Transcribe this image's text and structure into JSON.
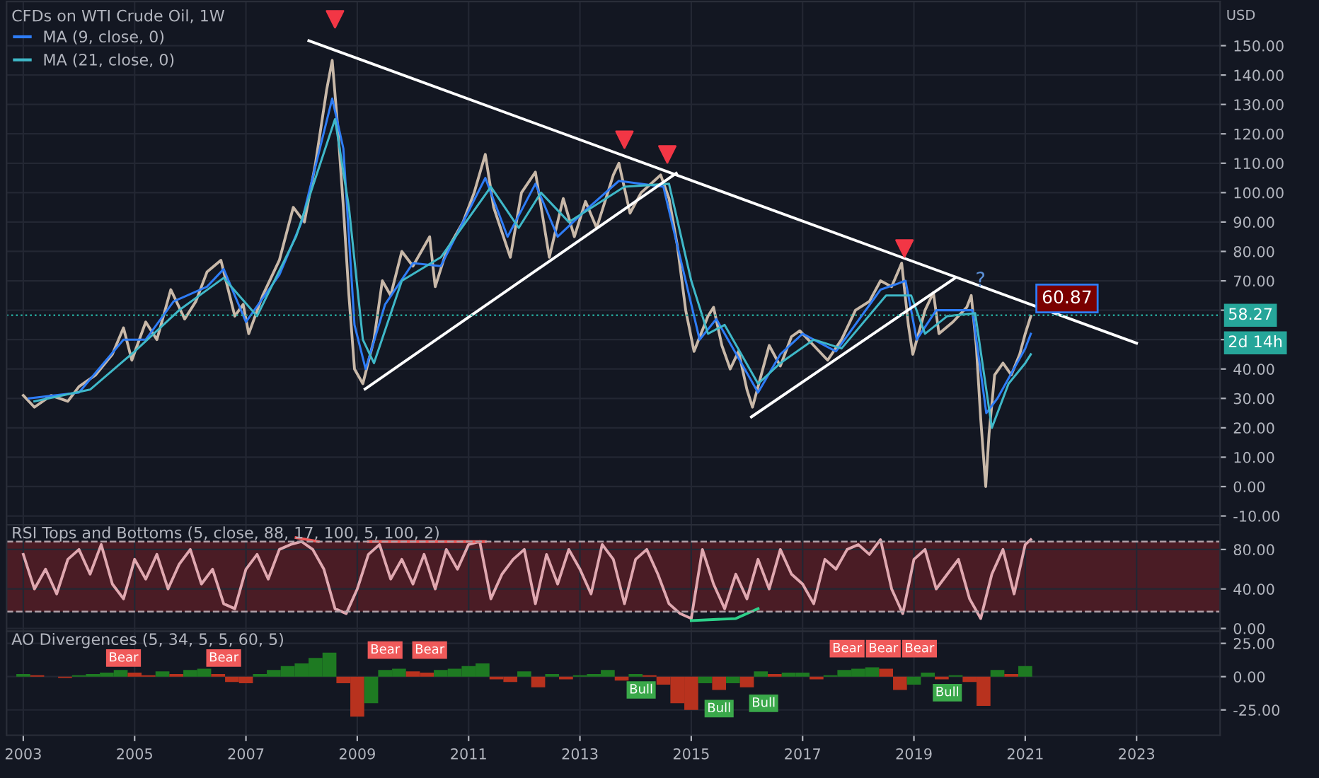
{
  "chart_data": [
    {
      "type": "line",
      "title": "CFDs on WTI Crude Oil, 1W",
      "legend": "top left",
      "grid": true,
      "tick_labels": "y",
      "xlim": [
        2002.7,
        2024.5
      ],
      "xticks": [
        2003,
        2005,
        2007,
        2009,
        2011,
        2013,
        2015,
        2017,
        2019,
        2021,
        2023
      ],
      "ylim": [
        -13,
        165
      ],
      "yticks": [
        {
          "value": -10,
          "label": "-10.00"
        },
        {
          "value": 0,
          "label": "0.00"
        },
        {
          "value": 10,
          "label": "10.00"
        },
        {
          "value": 20,
          "label": "20.00"
        },
        {
          "value": 30,
          "label": "30.00"
        },
        {
          "value": 40,
          "label": "40.00"
        },
        {
          "value": 50,
          "label": null
        },
        {
          "value": 60,
          "label": null
        },
        {
          "value": 70,
          "label": "70.00"
        },
        {
          "value": 80,
          "label": "80.00"
        },
        {
          "value": 90,
          "label": "90.00"
        },
        {
          "value": 100,
          "label": "100.00"
        },
        {
          "value": 110,
          "label": "110.00"
        },
        {
          "value": 120,
          "label": "120.00"
        },
        {
          "value": 130,
          "label": "130.00"
        },
        {
          "value": 140,
          "label": "140.00"
        },
        {
          "value": 150,
          "label": "150.00"
        }
      ],
      "series": [
        {
          "type": "line",
          "color": "#c8b8a8",
          "x": [
            2003.0,
            2003.2,
            2003.5,
            2003.8,
            2004.0,
            2004.3,
            2004.6,
            2004.8,
            2004.95,
            2005.2,
            2005.4,
            2005.65,
            2005.9,
            2006.1,
            2006.3,
            2006.55,
            2006.8,
            2006.95,
            2007.05,
            2007.3,
            2007.6,
            2007.85,
            2008.05,
            2008.25,
            2008.45,
            2008.55,
            2008.65,
            2008.75,
            2008.85,
            2008.95,
            2009.1,
            2009.3,
            2009.45,
            2009.6,
            2009.8,
            2010.0,
            2010.3,
            2010.4,
            2010.6,
            2010.9,
            2011.1,
            2011.3,
            2011.45,
            2011.75,
            2011.95,
            2012.2,
            2012.45,
            2012.7,
            2012.9,
            2013.1,
            2013.3,
            2013.6,
            2013.7,
            2013.9,
            2014.1,
            2014.45,
            2014.6,
            2014.75,
            2014.9,
            2015.05,
            2015.3,
            2015.4,
            2015.55,
            2015.7,
            2015.85,
            2016.0,
            2016.1,
            2016.4,
            2016.6,
            2016.8,
            2016.95,
            2017.2,
            2017.45,
            2017.7,
            2017.95,
            2018.2,
            2018.4,
            2018.6,
            2018.78,
            2018.9,
            2018.98,
            2019.2,
            2019.35,
            2019.45,
            2019.7,
            2019.95,
            2020.03,
            2020.12,
            2020.2,
            2020.29,
            2020.35,
            2020.45,
            2020.6,
            2020.75,
            2020.9,
            2021.0,
            2021.1
          ],
          "values": [
            31,
            27,
            31,
            29,
            34,
            38,
            45,
            54,
            43,
            56,
            50,
            67,
            57,
            63,
            73,
            77,
            58,
            62,
            52,
            65,
            77,
            95,
            90,
            110,
            135,
            145,
            122,
            95,
            65,
            40,
            35,
            50,
            70,
            65,
            80,
            75,
            85,
            68,
            80,
            90,
            100,
            113,
            95,
            78,
            100,
            107,
            78,
            98,
            85,
            97,
            88,
            106,
            110,
            93,
            100,
            106,
            98,
            82,
            60,
            46,
            58,
            61,
            48,
            40,
            46,
            33,
            27,
            48,
            41,
            51,
            53,
            48,
            43,
            50,
            60,
            63,
            70,
            68,
            76,
            55,
            45,
            60,
            66,
            52,
            56,
            61,
            65,
            48,
            23,
            0,
            18,
            38,
            42,
            38,
            45,
            52,
            58
          ]
        },
        {
          "type": "line",
          "name": "MA (9, close, 0)",
          "color": "#2e7cf6",
          "x": [
            2003.1,
            2004.0,
            2004.8,
            2005.2,
            2005.7,
            2006.3,
            2006.6,
            2007.0,
            2007.6,
            2008.0,
            2008.55,
            2008.75,
            2008.95,
            2009.15,
            2009.5,
            2010.0,
            2010.5,
            2011.3,
            2011.7,
            2012.2,
            2012.6,
            2013.1,
            2013.7,
            2014.5,
            2014.9,
            2015.15,
            2015.45,
            2015.9,
            2016.2,
            2016.6,
            2017.0,
            2017.6,
            2018.4,
            2018.85,
            2019.05,
            2019.4,
            2020.05,
            2020.3,
            2020.5,
            2021.0,
            2021.1
          ],
          "values": [
            30,
            32,
            50,
            50,
            63,
            68,
            74,
            56,
            72,
            90,
            132,
            115,
            55,
            40,
            62,
            76,
            75,
            105,
            85,
            103,
            85,
            94,
            104,
            102,
            70,
            50,
            57,
            42,
            32,
            45,
            52,
            46,
            67,
            70,
            50,
            60,
            60,
            25,
            30,
            47,
            52
          ]
        },
        {
          "type": "line",
          "name": "MA (21, close, 0)",
          "color": "#3fb8c8",
          "x": [
            2003.2,
            2004.2,
            2005.0,
            2005.8,
            2006.6,
            2007.2,
            2007.9,
            2008.6,
            2008.85,
            2009.1,
            2009.3,
            2009.8,
            2010.5,
            2011.4,
            2011.9,
            2012.3,
            2012.8,
            2013.8,
            2014.6,
            2015.0,
            2015.3,
            2015.6,
            2016.2,
            2016.6,
            2017.2,
            2017.7,
            2018.5,
            2018.95,
            2019.2,
            2019.6,
            2020.1,
            2020.4,
            2020.7,
            2021.0,
            2021.1
          ],
          "values": [
            29,
            33,
            46,
            60,
            71,
            58,
            85,
            125,
            95,
            50,
            42,
            70,
            78,
            102,
            88,
            100,
            90,
            102,
            103,
            70,
            52,
            55,
            35,
            42,
            50,
            47,
            65,
            65,
            52,
            58,
            59,
            20,
            35,
            42,
            45
          ]
        },
        {
          "type": "line",
          "color": "#ffffff",
          "x": [
            2008.13,
            2023.0
          ],
          "values": [
            151.7,
            48.8
          ]
        },
        {
          "type": "line",
          "color": "#ffffff",
          "x": [
            2009.14,
            2014.73
          ],
          "values": [
            33.2,
            106.6
          ]
        },
        {
          "type": "line",
          "color": "#ffffff",
          "x": [
            2016.08,
            2019.75
          ],
          "values": [
            23.7,
            71.1
          ]
        },
        {
          "type": "scatter",
          "marker": "triangle",
          "color": "#f23645",
          "x": [
            2008.6,
            2013.8,
            2014.57,
            2018.83
          ],
          "values": [
            159,
            118,
            113,
            81
          ]
        }
      ],
      "ref_lines": [
        {
          "axis": "y",
          "value": 58.27,
          "label": "58.27",
          "color": "#26a69a",
          "line_style": "dotted"
        }
      ],
      "annotations": [
        {
          "text": "60.87",
          "x": 2021.75,
          "y": 64
        },
        "USD",
        "2d 14h",
        "?"
      ]
    },
    {
      "type": "line",
      "title": "RSI Tops and Bottoms (5, close, 88, 17, 100, 5, 100, 2)",
      "grid": true,
      "tick_labels": "y",
      "xlim": [
        2002.7,
        2024.5
      ],
      "xticks": [
        2003,
        2005,
        2007,
        2009,
        2011,
        2013,
        2015,
        2017,
        2019,
        2021,
        2023
      ],
      "ylim": [
        -3,
        105
      ],
      "yticks": [
        {
          "value": 0,
          "label": "0.00"
        },
        {
          "value": 40,
          "label": "40.00"
        },
        {
          "value": 80,
          "label": "80.00"
        }
      ],
      "bands": [
        {
          "axis": "y",
          "from": 17,
          "to": 88,
          "color": "#4a1c25"
        }
      ],
      "ref_lines": [
        {
          "axis": "y",
          "value": 17,
          "color": "#b0a0a8",
          "line_style": "dashed"
        },
        {
          "axis": "y",
          "value": 88,
          "color": "#b0a0a8",
          "line_style": "dashed"
        }
      ],
      "series": [
        {
          "type": "line",
          "color": "#e0a8b0",
          "x": [
            2003.0,
            2003.2,
            2003.4,
            2003.6,
            2003.8,
            2004.0,
            2004.2,
            2004.4,
            2004.6,
            2004.8,
            2005.0,
            2005.2,
            2005.4,
            2005.6,
            2005.8,
            2006.0,
            2006.2,
            2006.4,
            2006.6,
            2006.8,
            2007.0,
            2007.2,
            2007.4,
            2007.6,
            2007.8,
            2008.0,
            2008.2,
            2008.4,
            2008.6,
            2008.8,
            2009.0,
            2009.2,
            2009.4,
            2009.6,
            2009.8,
            2010.0,
            2010.2,
            2010.4,
            2010.6,
            2010.8,
            2011.0,
            2011.2,
            2011.4,
            2011.6,
            2011.8,
            2012.0,
            2012.2,
            2012.4,
            2012.6,
            2012.8,
            2013.0,
            2013.2,
            2013.4,
            2013.6,
            2013.8,
            2014.0,
            2014.2,
            2014.4,
            2014.6,
            2014.8,
            2015.0,
            2015.2,
            2015.4,
            2015.6,
            2015.8,
            2016.0,
            2016.2,
            2016.4,
            2016.6,
            2016.8,
            2017.0,
            2017.2,
            2017.4,
            2017.6,
            2017.8,
            2018.0,
            2018.2,
            2018.4,
            2018.6,
            2018.8,
            2019.0,
            2019.2,
            2019.4,
            2019.6,
            2019.8,
            2020.0,
            2020.2,
            2020.4,
            2020.6,
            2020.8,
            2021.0,
            2021.1
          ],
          "values": [
            75,
            40,
            60,
            35,
            70,
            80,
            55,
            85,
            45,
            30,
            70,
            50,
            75,
            40,
            65,
            80,
            45,
            60,
            25,
            20,
            60,
            75,
            50,
            80,
            85,
            88,
            80,
            60,
            20,
            15,
            40,
            75,
            85,
            50,
            70,
            45,
            75,
            40,
            80,
            60,
            85,
            88,
            30,
            55,
            70,
            80,
            25,
            75,
            45,
            80,
            60,
            35,
            85,
            70,
            25,
            70,
            80,
            55,
            25,
            15,
            10,
            80,
            45,
            20,
            55,
            30,
            70,
            40,
            80,
            55,
            45,
            25,
            70,
            60,
            80,
            85,
            75,
            90,
            40,
            15,
            70,
            80,
            40,
            55,
            70,
            30,
            10,
            55,
            80,
            35,
            85,
            90
          ]
        },
        {
          "type": "line",
          "color": "#f05a5a",
          "x": [
            2007.9,
            2008.3
          ],
          "values": [
            92,
            88
          ]
        },
        {
          "type": "line",
          "color": "#f05a5a",
          "x": [
            2009.2,
            2011.3
          ],
          "values": [
            88,
            88
          ]
        },
        {
          "type": "line",
          "color": "#2ed18a",
          "x": [
            2015.0,
            2015.8,
            2016.2
          ],
          "values": [
            8,
            10,
            20
          ]
        }
      ]
    },
    {
      "type": "bar",
      "title": "AO Divergences (5, 34, 5, 5, 60, 5)",
      "grid": true,
      "xlim": [
        2002.7,
        2024.5
      ],
      "xticks": [
        2003,
        2005,
        2007,
        2009,
        2011,
        2013,
        2015,
        2017,
        2019,
        2021,
        2023
      ],
      "ylim": [
        -44,
        34
      ],
      "yticks": [
        {
          "value": -25,
          "label": "-25.00"
        },
        {
          "value": 0,
          "label": "0.00"
        },
        {
          "value": 25,
          "label": "25.00"
        }
      ],
      "x": [
        2003.0,
        2003.25,
        2003.5,
        2003.75,
        2004.0,
        2004.25,
        2004.5,
        2004.75,
        2005.0,
        2005.25,
        2005.5,
        2005.75,
        2006.0,
        2006.25,
        2006.5,
        2006.75,
        2007.0,
        2007.25,
        2007.5,
        2007.75,
        2008.0,
        2008.25,
        2008.5,
        2008.75,
        2009.0,
        2009.25,
        2009.5,
        2009.75,
        2010.0,
        2010.25,
        2010.5,
        2010.75,
        2011.0,
        2011.25,
        2011.5,
        2011.75,
        2012.0,
        2012.25,
        2012.5,
        2012.75,
        2013.0,
        2013.25,
        2013.5,
        2013.75,
        2014.0,
        2014.25,
        2014.5,
        2014.75,
        2015.0,
        2015.25,
        2015.5,
        2015.75,
        2016.0,
        2016.25,
        2016.5,
        2016.75,
        2017.0,
        2017.25,
        2017.5,
        2017.75,
        2018.0,
        2018.25,
        2018.5,
        2018.75,
        2019.0,
        2019.25,
        2019.5,
        2019.75,
        2020.0,
        2020.25,
        2020.5,
        2020.75,
        2021.0
      ],
      "values": [
        2,
        1,
        0,
        -1,
        1,
        2,
        3,
        5,
        3,
        1,
        4,
        2,
        5,
        6,
        2,
        -4,
        -5,
        2,
        5,
        8,
        10,
        14,
        18,
        -5,
        -30,
        -20,
        5,
        6,
        4,
        3,
        5,
        6,
        8,
        10,
        -2,
        -4,
        4,
        -8,
        2,
        -2,
        1,
        2,
        5,
        -3,
        2,
        1,
        -6,
        -20,
        -25,
        -5,
        -10,
        -5,
        -8,
        4,
        2,
        3,
        3,
        -2,
        1,
        5,
        6,
        7,
        6,
        -10,
        -6,
        3,
        -2,
        1,
        -4,
        -22,
        5,
        2,
        8
      ],
      "colors": [
        "#1e7a22",
        "#b8321e",
        "#b8321e",
        "#b8321e",
        "#1e7a22",
        "#1e7a22",
        "#1e7a22",
        "#1e7a22",
        "#b8321e",
        "#b8321e",
        "#1e7a22",
        "#b8321e",
        "#1e7a22",
        "#1e7a22",
        "#b8321e",
        "#b8321e",
        "#b8321e",
        "#1e7a22",
        "#1e7a22",
        "#1e7a22",
        "#1e7a22",
        "#1e7a22",
        "#1e7a22",
        "#b8321e",
        "#b8321e",
        "#1e7a22",
        "#1e7a22",
        "#1e7a22",
        "#b8321e",
        "#b8321e",
        "#1e7a22",
        "#1e7a22",
        "#1e7a22",
        "#1e7a22",
        "#b8321e",
        "#b8321e",
        "#1e7a22",
        "#b8321e",
        "#1e7a22",
        "#b8321e",
        "#1e7a22",
        "#1e7a22",
        "#1e7a22",
        "#b8321e",
        "#1e7a22",
        "#b8321e",
        "#b8321e",
        "#b8321e",
        "#b8321e",
        "#1e7a22",
        "#b8321e",
        "#1e7a22",
        "#b8321e",
        "#1e7a22",
        "#b8321e",
        "#1e7a22",
        "#1e7a22",
        "#b8321e",
        "#1e7a22",
        "#1e7a22",
        "#1e7a22",
        "#1e7a22",
        "#b8321e",
        "#b8321e",
        "#1e7a22",
        "#1e7a22",
        "#b8321e",
        "#1e7a22",
        "#b8321e",
        "#b8321e",
        "#1e7a22",
        "#b8321e",
        "#1e7a22"
      ],
      "annotations": [
        {
          "text": "Bear",
          "x": 2004.8,
          "y": 14
        },
        {
          "text": "Bear",
          "x": 2006.6,
          "y": 14
        },
        {
          "text": "Bear",
          "x": 2009.5,
          "y": 20
        },
        {
          "text": "Bear",
          "x": 2010.3,
          "y": 20
        },
        {
          "text": "Bull",
          "x": 2014.1,
          "y": -10
        },
        {
          "text": "Bull",
          "x": 2015.5,
          "y": -24
        },
        {
          "text": "Bull",
          "x": 2016.3,
          "y": -20
        },
        {
          "text": "Bear",
          "x": 2017.8,
          "y": 21
        },
        {
          "text": "Bear",
          "x": 2018.45,
          "y": 21
        },
        {
          "text": "Bear",
          "x": 2019.1,
          "y": 21
        },
        {
          "text": "Bull",
          "x": 2019.6,
          "y": -12
        }
      ]
    }
  ]
}
